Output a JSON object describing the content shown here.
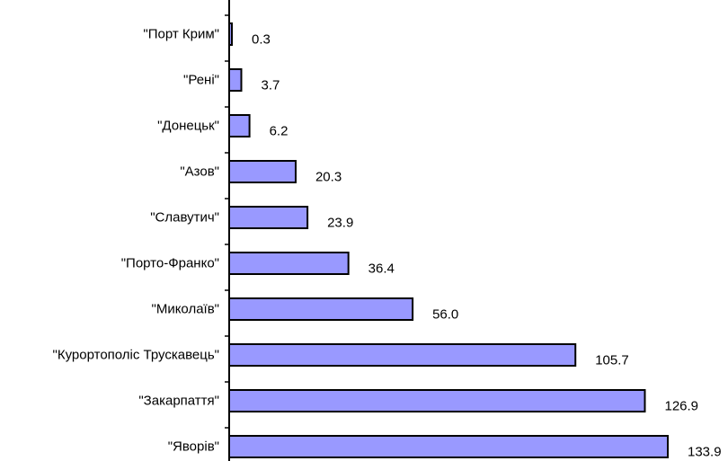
{
  "chart_data": {
    "type": "bar",
    "orientation": "horizontal",
    "categories": [
      "\"Порт Крим\"",
      "\"Рені\"",
      "\"Донецьк\"",
      "\"Азов\"",
      "\"Славутич\"",
      "\"Порто-Франко\"",
      "\"Миколаїв\"",
      "\"Курортополіс Трускавець\"",
      "\"Закарпаття\"",
      "\"Яворів\""
    ],
    "values": [
      0.3,
      3.7,
      6.2,
      20.3,
      23.9,
      36.4,
      56.0,
      105.7,
      126.9,
      133.9
    ],
    "value_labels": [
      "0.3",
      "3.7",
      "6.2",
      "20.3",
      "23.9",
      "36.4",
      "56.0",
      "105.7",
      "126.9",
      "133.9"
    ],
    "title": "",
    "xlabel": "",
    "ylabel": "",
    "xlim": [
      0,
      133.9
    ],
    "grid": false,
    "legend": "none",
    "colors": {
      "bar_fill": "#9999ff",
      "bar_stroke": "#000000",
      "axis": "#000000",
      "text": "#000000"
    }
  }
}
